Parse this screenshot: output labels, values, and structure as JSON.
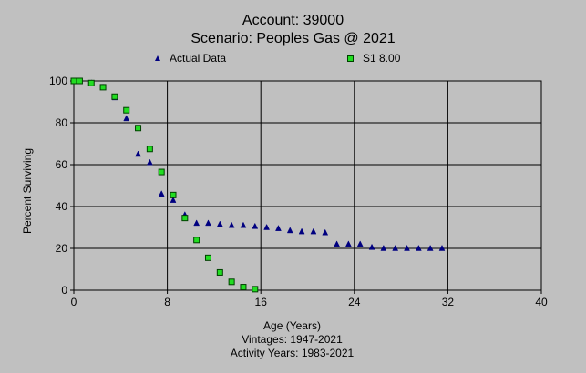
{
  "chart_data": {
    "type": "scatter",
    "title": "Account: 39000",
    "subtitle": "Scenario: Peoples Gas @ 2021",
    "xlabel": "Age (Years)",
    "ylabel": "Percent Surviving",
    "footer_lines": [
      "Vintages: 1947-2021",
      "Activity Years: 1983-2021"
    ],
    "xlim": [
      0,
      40
    ],
    "ylim": [
      0,
      100
    ],
    "x_ticks": [
      "0",
      "8",
      "16",
      "24",
      "32",
      "40"
    ],
    "y_ticks": [
      "0",
      "20",
      "40",
      "60",
      "80",
      "100"
    ],
    "grid": true,
    "legend_position": "top",
    "series": [
      {
        "name": "Actual Data",
        "marker": "triangle",
        "color": "#000080",
        "x": [
          0,
          0.5,
          1.5,
          2.5,
          3.5,
          4.5,
          5.5,
          6.5,
          7.5,
          8.5,
          9.5,
          10.5,
          11.5,
          12.5,
          13.5,
          14.5,
          15.5,
          16.5,
          17.5,
          18.5,
          19.5,
          20.5,
          21.5,
          22.5,
          23.5,
          24.5,
          25.5,
          26.5,
          27.5,
          28.5,
          29.5,
          30.5,
          31.5
        ],
        "y": [
          100,
          100,
          99,
          97,
          92,
          82,
          65,
          61,
          46,
          43,
          36,
          32,
          32,
          31.5,
          31,
          31,
          30.5,
          30,
          29.5,
          28.5,
          28,
          28,
          27.5,
          22,
          22,
          22,
          20.5,
          20,
          20,
          20,
          20,
          20,
          20
        ]
      },
      {
        "name": "S1 8.00",
        "marker": "square",
        "color": "#22dd22",
        "x": [
          0,
          0.5,
          1.5,
          2.5,
          3.5,
          4.5,
          5.5,
          6.5,
          7.5,
          8.5,
          9.5,
          10.5,
          11.5,
          12.5,
          13.5,
          14.5,
          15.5
        ],
        "y": [
          100,
          100,
          99,
          97,
          92.5,
          86,
          77.5,
          67.5,
          56.5,
          45.5,
          34.5,
          24,
          15.5,
          8.5,
          4,
          1.5,
          0.5
        ]
      }
    ]
  }
}
